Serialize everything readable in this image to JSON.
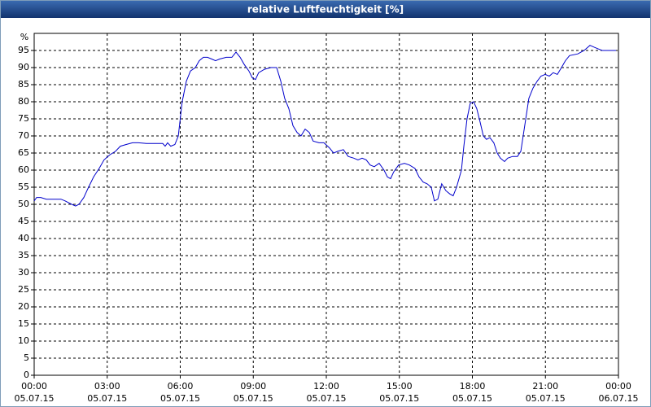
{
  "chart_data": {
    "type": "line",
    "title": "relative Luftfeuchtigkeit [%]",
    "y_label": "%",
    "x": [
      0,
      0.1,
      0.27,
      0.5,
      0.77,
      1.1,
      1.27,
      1.54,
      1.7,
      1.84,
      2.04,
      2.2,
      2.44,
      2.67,
      2.87,
      3.11,
      3.34,
      3.54,
      3.78,
      4.04,
      4.28,
      4.61,
      4.95,
      5.28,
      5.38,
      5.48,
      5.61,
      5.78,
      5.92,
      6.08,
      6.25,
      6.42,
      6.62,
      6.78,
      6.95,
      7.12,
      7.29,
      7.45,
      7.62,
      7.89,
      8.12,
      8.29,
      8.46,
      8.62,
      8.82,
      8.96,
      9.09,
      9.22,
      9.46,
      9.73,
      9.96,
      10.13,
      10.29,
      10.46,
      10.63,
      10.8,
      10.96,
      11.13,
      11.3,
      11.46,
      11.7,
      11.9,
      12.13,
      12.3,
      12.47,
      12.7,
      12.9,
      13.13,
      13.3,
      13.47,
      13.64,
      13.8,
      13.97,
      14.17,
      14.37,
      14.51,
      14.64,
      14.77,
      14.97,
      15.21,
      15.41,
      15.64,
      15.81,
      15.98,
      16.14,
      16.31,
      16.44,
      16.58,
      16.74,
      16.91,
      17.08,
      17.21,
      17.35,
      17.55,
      17.65,
      17.78,
      17.91,
      18.05,
      18.18,
      18.32,
      18.45,
      18.58,
      18.72,
      18.88,
      19.02,
      19.15,
      19.32,
      19.45,
      19.65,
      19.85,
      19.99,
      20.15,
      20.32,
      20.49,
      20.66,
      20.82,
      20.99,
      21.16,
      21.32,
      21.49,
      21.66,
      21.82,
      21.99,
      22.33,
      22.59,
      22.83,
      22.99,
      23.16,
      23.33,
      23.66,
      23.9
    ],
    "values": [
      51,
      52,
      52,
      51.5,
      51.5,
      51.5,
      51,
      50,
      49.5,
      50,
      52,
      54.5,
      58,
      60.5,
      63,
      64.5,
      65.5,
      67,
      67.5,
      68,
      68,
      67.8,
      67.8,
      67.8,
      67,
      68,
      67,
      67.5,
      70,
      80,
      86,
      89,
      90,
      92,
      93,
      93,
      92.5,
      92,
      92.5,
      93,
      93,
      94.5,
      93,
      91,
      89,
      87,
      86.5,
      88.5,
      89.5,
      90,
      90,
      86,
      81,
      78,
      73,
      71,
      70,
      72,
      71,
      68.5,
      68,
      68,
      66.5,
      65,
      65.5,
      66,
      64,
      63.5,
      63,
      63.5,
      63,
      61.5,
      61,
      62,
      60,
      58,
      57.5,
      59.5,
      61.5,
      62,
      61.5,
      60.5,
      58,
      56.5,
      56,
      55,
      51,
      51.5,
      56,
      54,
      53,
      52.5,
      55,
      60,
      67,
      75,
      79.5,
      80,
      78,
      74,
      70,
      69,
      69.5,
      68,
      65,
      63.5,
      62.5,
      63.5,
      64,
      64,
      65.5,
      73,
      81,
      84,
      86,
      87.5,
      88,
      87.5,
      88.5,
      88,
      90,
      92,
      93.5,
      94,
      95,
      96.5,
      96,
      95.5,
      95,
      95,
      95
    ],
    "color": "#0000cc",
    "xlim": [
      0,
      24
    ],
    "xticks": [
      {
        "value": 0,
        "label": "00:00"
      },
      {
        "value": 3,
        "label": "03:00"
      },
      {
        "value": 6,
        "label": "06:00"
      },
      {
        "value": 9,
        "label": "09:00"
      },
      {
        "value": 12,
        "label": "12:00"
      },
      {
        "value": 15,
        "label": "15:00"
      },
      {
        "value": 18,
        "label": "18:00"
      },
      {
        "value": 21,
        "label": "21:00"
      },
      {
        "value": 24,
        "label": "00:00"
      }
    ],
    "xtick_dates": [
      "05.07.15",
      "05.07.15",
      "05.07.15",
      "05.07.15",
      "05.07.15",
      "05.07.15",
      "05.07.15",
      "05.07.15",
      "06.07.15"
    ],
    "ylim": [
      0,
      100
    ],
    "yticks": [
      0,
      5,
      10,
      15,
      20,
      25,
      30,
      35,
      40,
      45,
      50,
      55,
      60,
      65,
      70,
      75,
      80,
      85,
      90,
      95
    ],
    "grid": true
  }
}
